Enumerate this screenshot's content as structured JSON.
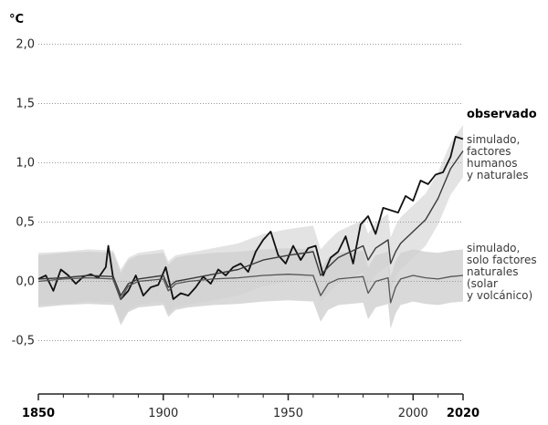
{
  "chart_data": {
    "type": "line",
    "unit_label": "°C",
    "ylim": [
      -0.95,
      2.05
    ],
    "xlim": [
      1850,
      2020
    ],
    "y_ticks": [
      "2,0",
      "1,5",
      "1,0",
      "0,5",
      "0,0",
      "-0,5"
    ],
    "y_tick_values": [
      2.0,
      1.5,
      1.0,
      0.5,
      0.0,
      -0.5
    ],
    "x_ticks": [
      "1850",
      "1900",
      "1950",
      "2000",
      "2020"
    ],
    "x_tick_values": [
      1850,
      1900,
      1950,
      2000,
      2020
    ],
    "gridlines": true,
    "series": [
      {
        "name": "observado",
        "color": "#111111",
        "x": [
          1850,
          1853,
          1856,
          1859,
          1862,
          1865,
          1868,
          1871,
          1874,
          1877,
          1878,
          1880,
          1883,
          1886,
          1889,
          1892,
          1895,
          1898,
          1901,
          1904,
          1907,
          1910,
          1913,
          1916,
          1919,
          1922,
          1925,
          1928,
          1931,
          1934,
          1937,
          1940,
          1943,
          1946,
          1949,
          1952,
          1955,
          1958,
          1961,
          1964,
          1967,
          1970,
          1973,
          1976,
          1979,
          1982,
          1985,
          1988,
          1991,
          1994,
          1997,
          2000,
          2003,
          2006,
          2009,
          2012,
          2015,
          2017,
          2020
        ],
        "values": [
          0.02,
          0.05,
          -0.08,
          0.1,
          0.05,
          -0.02,
          0.04,
          0.06,
          0.03,
          0.12,
          0.3,
          0.02,
          -0.15,
          -0.08,
          0.05,
          -0.12,
          -0.05,
          -0.03,
          0.12,
          -0.15,
          -0.1,
          -0.12,
          -0.05,
          0.04,
          -0.02,
          0.1,
          0.05,
          0.12,
          0.15,
          0.08,
          0.25,
          0.35,
          0.42,
          0.22,
          0.15,
          0.3,
          0.18,
          0.28,
          0.3,
          0.05,
          0.2,
          0.25,
          0.38,
          0.15,
          0.48,
          0.55,
          0.4,
          0.62,
          0.6,
          0.58,
          0.72,
          0.68,
          0.85,
          0.82,
          0.9,
          0.92,
          1.05,
          1.22,
          1.2
        ]
      },
      {
        "name": "simulado, factores humanos y naturales",
        "color": "#3a3a3a",
        "x": [
          1850,
          1860,
          1870,
          1880,
          1883,
          1886,
          1890,
          1900,
          1902,
          1905,
          1910,
          1920,
          1930,
          1940,
          1950,
          1960,
          1963,
          1966,
          1970,
          1980,
          1982,
          1985,
          1990,
          1991,
          1993,
          1995,
          2000,
          2005,
          2010,
          2015,
          2020
        ],
        "values": [
          0.02,
          0.03,
          0.05,
          0.04,
          -0.12,
          -0.02,
          0.02,
          0.05,
          -0.05,
          0.0,
          0.02,
          0.06,
          0.1,
          0.18,
          0.22,
          0.25,
          0.05,
          0.12,
          0.2,
          0.3,
          0.18,
          0.28,
          0.35,
          0.15,
          0.25,
          0.32,
          0.42,
          0.52,
          0.7,
          0.95,
          1.1
        ]
      },
      {
        "name": "simulado, solo factores naturales (solar y volcánico)",
        "color": "#555555",
        "x": [
          1850,
          1860,
          1870,
          1880,
          1883,
          1886,
          1890,
          1900,
          1902,
          1905,
          1910,
          1920,
          1930,
          1940,
          1950,
          1960,
          1963,
          1966,
          1970,
          1980,
          1982,
          1985,
          1990,
          1991,
          1993,
          1995,
          2000,
          2005,
          2010,
          2015,
          2020
        ],
        "values": [
          0.0,
          0.02,
          0.03,
          0.02,
          -0.15,
          -0.04,
          0.0,
          0.02,
          -0.08,
          -0.02,
          0.0,
          0.02,
          0.03,
          0.05,
          0.06,
          0.05,
          -0.12,
          -0.02,
          0.02,
          0.04,
          -0.1,
          0.0,
          0.03,
          -0.18,
          -0.05,
          0.02,
          0.05,
          0.03,
          0.02,
          0.04,
          0.05
        ]
      }
    ],
    "labels": {
      "observed": "observado",
      "human_natural": [
        "simulado,",
        "factores",
        "humanos",
        "y naturales"
      ],
      "natural_only": [
        "simulado,",
        "solo factores",
        "naturales",
        "(solar",
        "y volcánico)"
      ]
    },
    "colors": {
      "natural_band": "#cfcfcf",
      "human_band": "#dcdcdc",
      "grid": "#9a9a9a"
    }
  }
}
